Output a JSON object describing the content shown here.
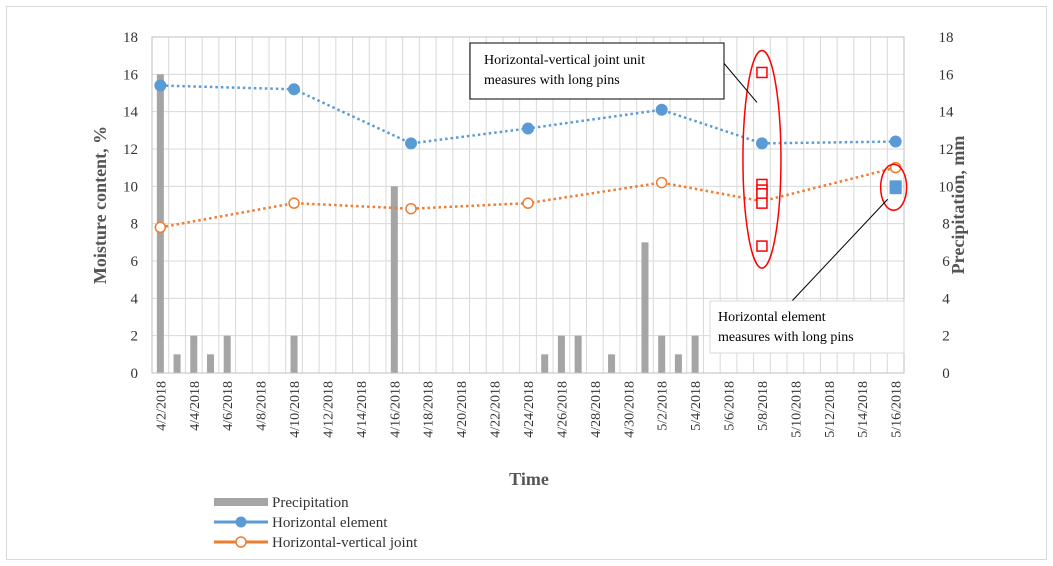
{
  "chart_data": {
    "type": "bar+line",
    "xlabel": "Time",
    "ylabel": "Moisture content, %",
    "y2label": "Precipitation, mm",
    "ylim": [
      0,
      18
    ],
    "y2lim": [
      0,
      18
    ],
    "yticks": [
      "0",
      "2",
      "4",
      "6",
      "8",
      "10",
      "12",
      "14",
      "16",
      "18"
    ],
    "grid": true,
    "x_range": [
      "2018-04-02",
      "2018-05-17"
    ],
    "xtick_dates": [
      "2018-04-02",
      "2018-04-04",
      "2018-04-06",
      "2018-04-08",
      "2018-04-10",
      "2018-04-12",
      "2018-04-14",
      "2018-04-16",
      "2018-04-18",
      "2018-04-20",
      "2018-04-22",
      "2018-04-24",
      "2018-04-26",
      "2018-04-28",
      "2018-04-30",
      "2018-05-02",
      "2018-05-04",
      "2018-05-06",
      "2018-05-08",
      "2018-05-10",
      "2018-05-12",
      "2018-05-14",
      "2018-05-16"
    ],
    "xtick_labels": [
      "4/2/2018",
      "4/4/2018",
      "4/6/2018",
      "4/8/2018",
      "4/10/2018",
      "4/12/2018",
      "4/14/2018",
      "4/16/2018",
      "4/18/2018",
      "4/20/2018",
      "4/22/2018",
      "4/24/2018",
      "4/26/2018",
      "4/28/2018",
      "4/30/2018",
      "5/2/2018",
      "5/4/2018",
      "5/6/2018",
      "5/8/2018",
      "5/10/2018",
      "5/12/2018",
      "5/14/2018",
      "5/16/2018"
    ],
    "legend_position": "bottom-left",
    "series": [
      {
        "name": "Precipitation",
        "kind": "bar",
        "axis": "right",
        "color": "#a5a5a5",
        "points": [
          {
            "x": "2018-04-02",
            "y": 16
          },
          {
            "x": "2018-04-03",
            "y": 1
          },
          {
            "x": "2018-04-04",
            "y": 2
          },
          {
            "x": "2018-04-05",
            "y": 1
          },
          {
            "x": "2018-04-06",
            "y": 2
          },
          {
            "x": "2018-04-10",
            "y": 2
          },
          {
            "x": "2018-04-16",
            "y": 10
          },
          {
            "x": "2018-04-25",
            "y": 1
          },
          {
            "x": "2018-04-26",
            "y": 2
          },
          {
            "x": "2018-04-27",
            "y": 2
          },
          {
            "x": "2018-04-29",
            "y": 1
          },
          {
            "x": "2018-05-01",
            "y": 7
          },
          {
            "x": "2018-05-02",
            "y": 2
          },
          {
            "x": "2018-05-03",
            "y": 1
          },
          {
            "x": "2018-05-04",
            "y": 2
          }
        ]
      },
      {
        "name": "Horizontal element",
        "kind": "line",
        "axis": "left",
        "color": "#5b9bd5",
        "marker": "filled-circle",
        "points": [
          {
            "x": "2018-04-02",
            "y": 15.4
          },
          {
            "x": "2018-04-10",
            "y": 15.2
          },
          {
            "x": "2018-04-17",
            "y": 12.3
          },
          {
            "x": "2018-04-24",
            "y": 13.1
          },
          {
            "x": "2018-05-02",
            "y": 14.1
          },
          {
            "x": "2018-05-08",
            "y": 12.3
          },
          {
            "x": "2018-05-16",
            "y": 12.4
          }
        ]
      },
      {
        "name": "Horizontal-vertical joint",
        "kind": "line",
        "axis": "left",
        "color": "#ed7d31",
        "marker": "open-circle",
        "points": [
          {
            "x": "2018-04-02",
            "y": 7.8
          },
          {
            "x": "2018-04-10",
            "y": 9.1
          },
          {
            "x": "2018-04-17",
            "y": 8.8
          },
          {
            "x": "2018-04-24",
            "y": 9.1
          },
          {
            "x": "2018-05-02",
            "y": 10.2
          },
          {
            "x": "2018-05-08",
            "y": 9.2
          },
          {
            "x": "2018-05-16",
            "y": 11.0
          }
        ]
      },
      {
        "name": "",
        "kind": "scatter",
        "axis": "left",
        "color": "#ff0000",
        "marker": "open-square",
        "points": [
          {
            "x": "2018-05-08",
            "y": 16.1
          },
          {
            "x": "2018-05-08",
            "y": 10.1
          },
          {
            "x": "2018-05-08",
            "y": 9.8
          },
          {
            "x": "2018-05-08",
            "y": 9.6
          },
          {
            "x": "2018-05-08",
            "y": 9.1
          },
          {
            "x": "2018-05-08",
            "y": 6.8
          }
        ]
      },
      {
        "name": "",
        "kind": "scatter",
        "axis": "left",
        "color": "#5b9bd5",
        "marker": "filled-square",
        "points": [
          {
            "x": "2018-05-16",
            "y": 10.0
          },
          {
            "x": "2018-05-16",
            "y": 9.9
          }
        ]
      }
    ],
    "annotations": [
      {
        "lines": [
          "Horizontal-vertical joint unit",
          "measures with long pins"
        ],
        "position": "top-right",
        "target": {
          "x": "2018-05-08",
          "ylim": [
            6.8,
            16.1
          ]
        }
      },
      {
        "lines": [
          "Horizontal element",
          "measures with long pins"
        ],
        "position": "bottom-right",
        "target": {
          "x": "2018-05-16",
          "ylim": [
            9.9,
            10.0
          ]
        }
      }
    ]
  }
}
